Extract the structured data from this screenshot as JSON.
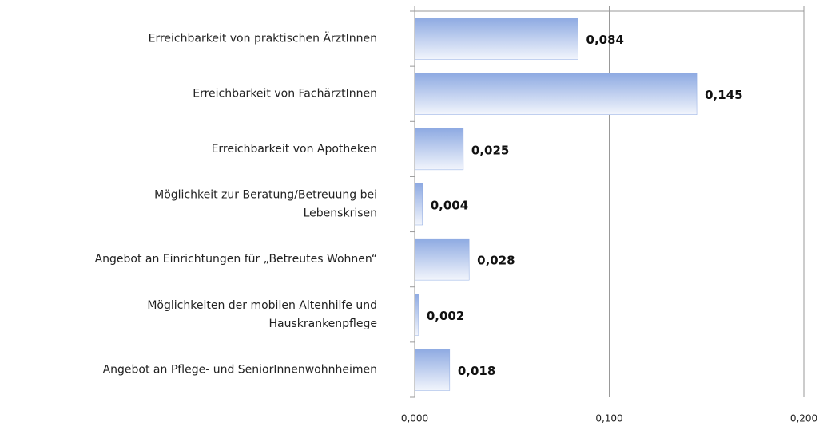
{
  "chart_data": {
    "type": "hbar",
    "categories": [
      [
        "Erreichbarkeit von praktischen ÄrztInnen"
      ],
      [
        "Erreichbarkeit von FachärztInnen"
      ],
      [
        "Erreichbarkeit von Apotheken"
      ],
      [
        "Möglichkeit zur Beratung/Betreuung bei",
        "Lebenskrisen"
      ],
      [
        "Angebot an Einrichtungen für „Betreutes Wohnen“"
      ],
      [
        "Möglichkeiten der mobilen Altenhilfe und",
        "Hauskrankenpflege"
      ],
      [
        "Angebot an Pflege- und SeniorInnenwohnheimen"
      ]
    ],
    "values": [
      0.084,
      0.145,
      0.025,
      0.004,
      0.028,
      0.002,
      0.018
    ],
    "value_labels": [
      "0,084",
      "0,145",
      "0,025",
      "0,004",
      "0,028",
      "0,002",
      "0,018"
    ],
    "color": "#8eaae2",
    "xlim": [
      0,
      0.2
    ],
    "xticks": [
      {
        "value": 0,
        "label": "0,000"
      },
      {
        "value": 0.1,
        "label": "0,100"
      },
      {
        "value": 0.2,
        "label": "0,200"
      }
    ],
    "grid": true
  }
}
